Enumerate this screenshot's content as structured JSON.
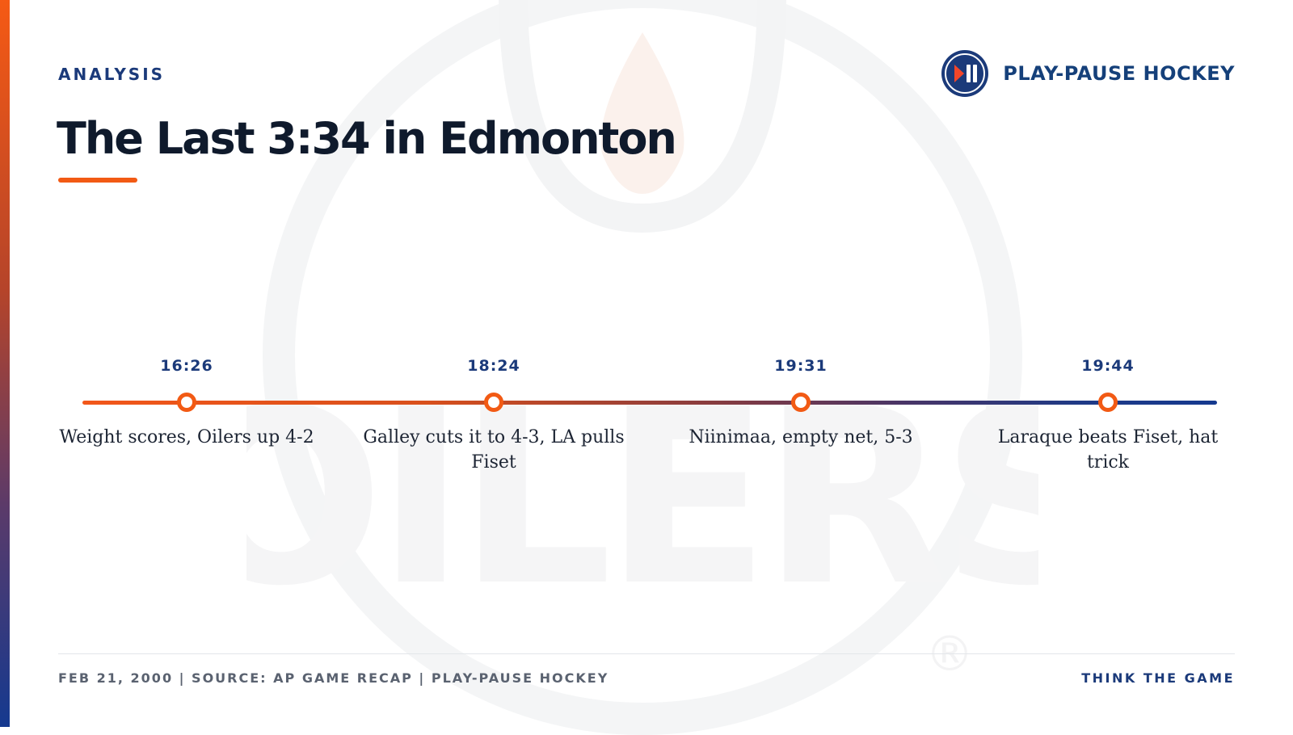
{
  "header": {
    "kicker": "ANALYSIS",
    "title": "The Last 3:34 in Edmonton",
    "brand_name": "PLAY-PAUSE HOCKEY",
    "brand_icon": "play-pause-icon"
  },
  "timeline": {
    "events": [
      {
        "time": "16:26",
        "description": "Weight scores, Oilers up 4-2"
      },
      {
        "time": "18:24",
        "description": "Galley cuts it to 4-3, LA pulls Fiset"
      },
      {
        "time": "19:31",
        "description": "Niinimaa, empty net, 5-3"
      },
      {
        "time": "19:44",
        "description": "Laraque beats Fiset, hat trick"
      }
    ]
  },
  "footer": {
    "source": "FEB 21, 2000 | SOURCE: AP GAME RECAP | PLAY-PAUSE HOCKEY",
    "tagline": "THINK THE GAME"
  },
  "watermark": {
    "text": "OILERS",
    "registered_mark": "®"
  },
  "colors": {
    "accent_orange": "#f25a14",
    "navy": "#1b3a7a",
    "title_text": "#0f1a2c"
  }
}
